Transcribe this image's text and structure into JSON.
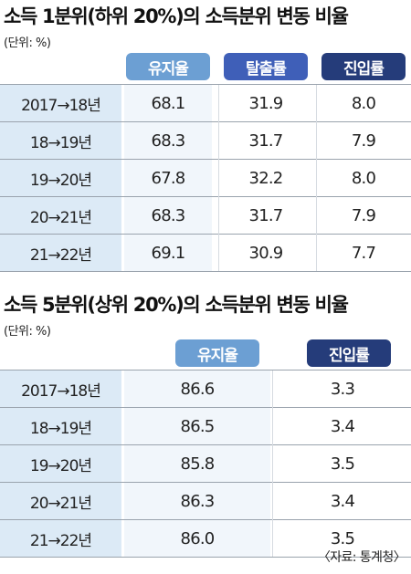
{
  "chart_data": [
    {
      "type": "table",
      "title": "소득 1분위(하위 20%)의 소득분위 변동 비율",
      "unit": "(단위: %)",
      "columns": [
        "유지율",
        "탈출률",
        "진입률"
      ],
      "rows": [
        {
          "label": "2017→18년",
          "values": [
            "68.1",
            "31.9",
            "8.0"
          ]
        },
        {
          "label": "18→19년",
          "values": [
            "68.3",
            "31.7",
            "7.9"
          ]
        },
        {
          "label": "19→20년",
          "values": [
            "67.8",
            "32.2",
            "8.0"
          ]
        },
        {
          "label": "20→21년",
          "values": [
            "68.3",
            "31.7",
            "7.9"
          ]
        },
        {
          "label": "21→22년",
          "values": [
            "69.1",
            "30.9",
            "7.7"
          ]
        }
      ]
    },
    {
      "type": "table",
      "title": "소득 5분위(상위 20%)의 소득분위 변동 비율",
      "unit": "(단위: %)",
      "columns": [
        "유지율",
        "진입률"
      ],
      "rows": [
        {
          "label": "2017→18년",
          "values": [
            "86.6",
            "3.3"
          ]
        },
        {
          "label": "18→19년",
          "values": [
            "86.5",
            "3.4"
          ]
        },
        {
          "label": "19→20년",
          "values": [
            "85.8",
            "3.5"
          ]
        },
        {
          "label": "20→21년",
          "values": [
            "86.3",
            "3.4"
          ]
        },
        {
          "label": "21→22년",
          "values": [
            "86.0",
            "3.5"
          ]
        }
      ]
    }
  ],
  "colors": {
    "유지율": "#6c9fd3",
    "탈출률": "#3f5fb8",
    "진입률": "#253c7a",
    "label_background": "#dceaf6"
  },
  "source": "〈자료: 통계청〉"
}
